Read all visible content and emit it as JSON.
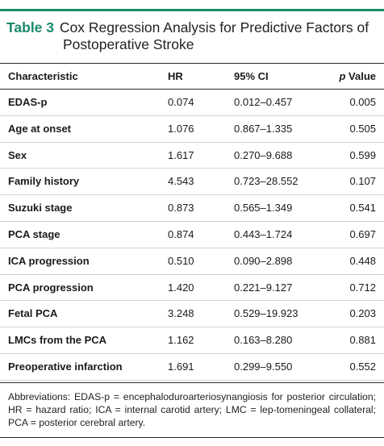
{
  "caption": {
    "label": "Table 3",
    "title_line1": "Cox Regression Analysis for Predictive Factors of",
    "title_line2": "Postoperative Stroke"
  },
  "table": {
    "headers": {
      "characteristic": "Characteristic",
      "hr": "HR",
      "ci": "95% CI",
      "p_italic": "p",
      "p_rest": " Value"
    },
    "rows": [
      {
        "characteristic": "EDAS-p",
        "hr": "0.074",
        "ci": "0.012–0.457",
        "p": "0.005"
      },
      {
        "characteristic": "Age at onset",
        "hr": "1.076",
        "ci": "0.867–1.335",
        "p": "0.505"
      },
      {
        "characteristic": "Sex",
        "hr": "1.617",
        "ci": "0.270–9.688",
        "p": "0.599"
      },
      {
        "characteristic": "Family history",
        "hr": "4.543",
        "ci": "0.723–28.552",
        "p": "0.107"
      },
      {
        "characteristic": "Suzuki stage",
        "hr": "0.873",
        "ci": "0.565–1.349",
        "p": "0.541"
      },
      {
        "characteristic": "PCA stage",
        "hr": "0.874",
        "ci": "0.443–1.724",
        "p": "0.697"
      },
      {
        "characteristic": "ICA progression",
        "hr": "0.510",
        "ci": "0.090–2.898",
        "p": "0.448"
      },
      {
        "characteristic": "PCA progression",
        "hr": "1.420",
        "ci": "0.221–9.127",
        "p": "0.712"
      },
      {
        "characteristic": "Fetal PCA",
        "hr": "3.248",
        "ci": "0.529–19.923",
        "p": "0.203"
      },
      {
        "characteristic": "LMCs from the PCA",
        "hr": "1.162",
        "ci": "0.163–8.280",
        "p": "0.881"
      },
      {
        "characteristic": "Preoperative infarction",
        "hr": "1.691",
        "ci": "0.299–9.550",
        "p": "0.552"
      }
    ]
  },
  "footnote": "Abbreviations: EDAS-p = encephaloduroarteriosynangiosis for posterior circulation; HR = hazard ratio; ICA = internal carotid artery; LMC = lep-tomeningeal collateral; PCA = posterior cerebral artery.",
  "colors": {
    "accent": "#1a8a6b",
    "rule": "#2b2b2b",
    "row_divider": "#cfd6d3"
  }
}
